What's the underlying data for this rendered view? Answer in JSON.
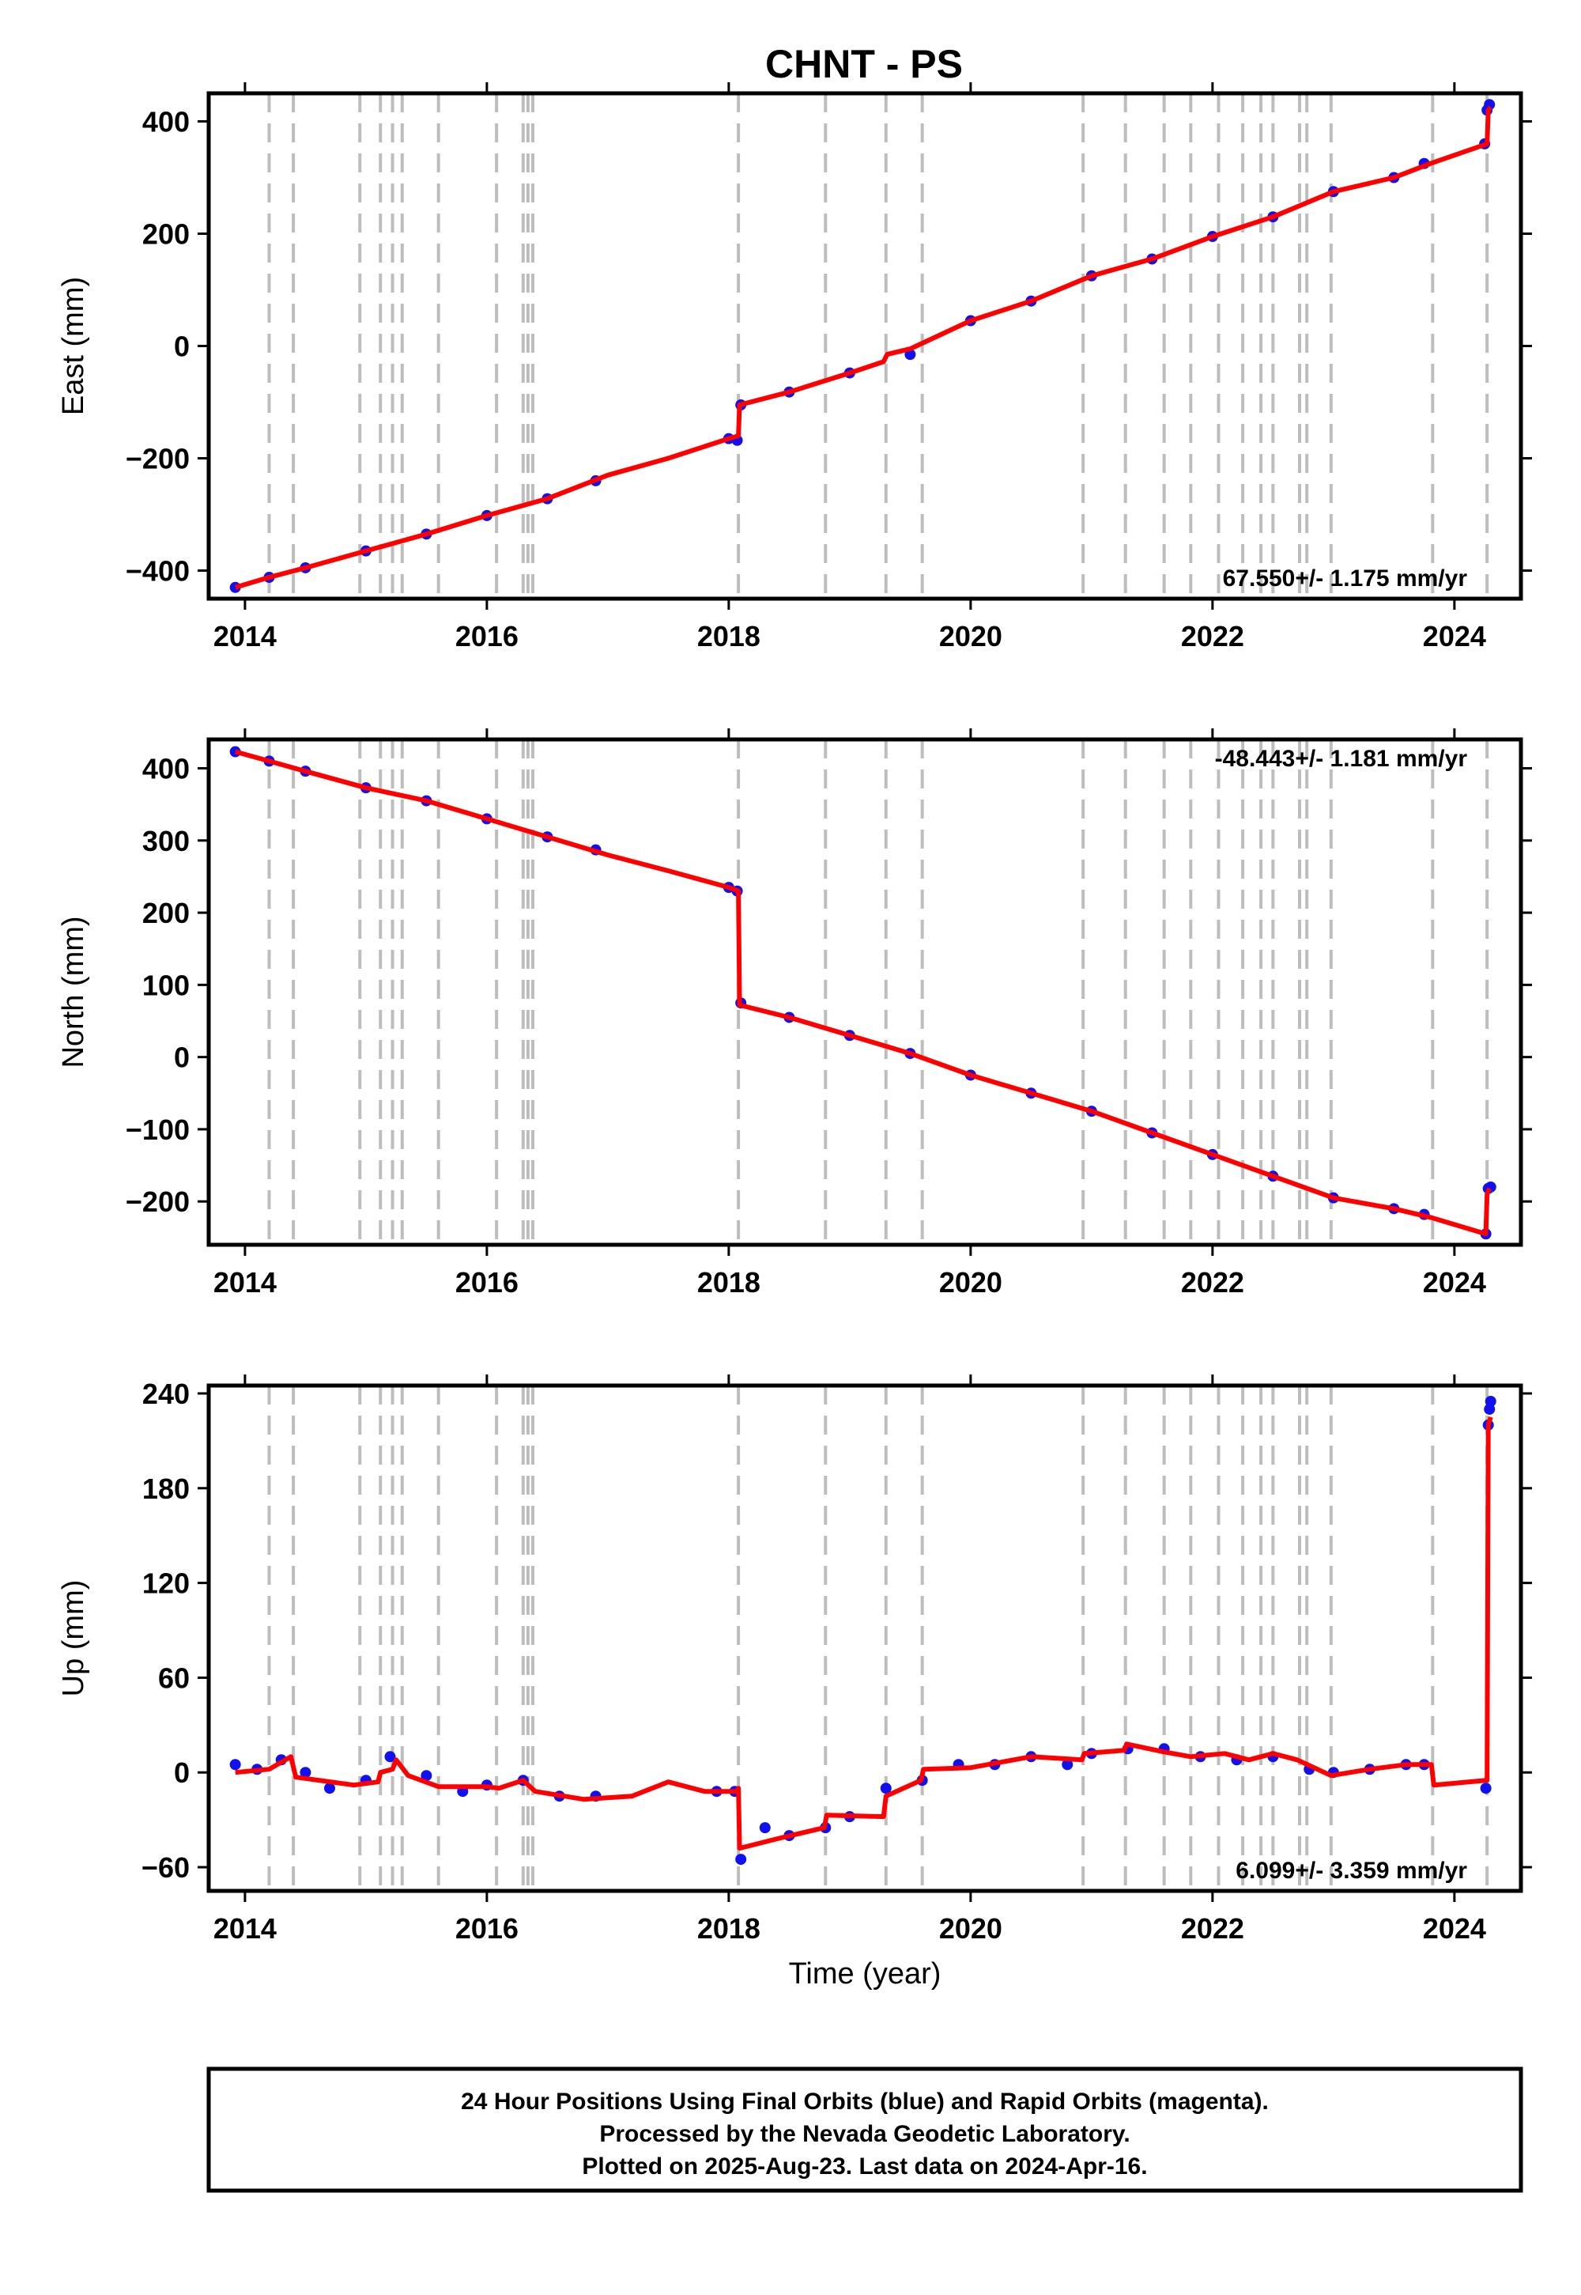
{
  "title": "CHNT - PS",
  "colors": {
    "final_orbits": "#1010f0",
    "model": "#ff0000",
    "events": "#bdbdbd",
    "frame": "#000000"
  },
  "footer": {
    "line1": "24 Hour Positions Using Final Orbits (blue) and Rapid Orbits (magenta).",
    "line2": "Processed by the Nevada Geodetic Laboratory.",
    "line3": "Plotted on 2025-Aug-23. Last data on 2024-Apr-16."
  },
  "chart_data": [
    {
      "type": "scatter",
      "ylabel": "East (mm)",
      "xlabel": "",
      "rate_text": "67.550+/- 1.175 mm/yr",
      "rate_position": "bottom-right",
      "xlim": [
        2013.7,
        2024.55
      ],
      "ylim": [
        -450,
        450
      ],
      "x_ticks": [
        2014,
        2016,
        2018,
        2020,
        2022,
        2024
      ],
      "y_ticks": [
        -400,
        -200,
        0,
        200,
        400
      ],
      "y_tick_labels": [
        "−400",
        "−200",
        "0",
        "200",
        "400"
      ],
      "event_lines": [
        2014.2,
        2014.4,
        2014.95,
        2015.12,
        2015.22,
        2015.3,
        2015.6,
        2016.08,
        2016.3,
        2016.34,
        2016.38,
        2018.08,
        2018.8,
        2019.3,
        2019.6,
        2020.93,
        2021.28,
        2021.6,
        2021.82,
        2022.05,
        2022.25,
        2022.4,
        2022.5,
        2022.72,
        2022.78,
        2022.98,
        2023.82,
        2024.27
      ],
      "series": [
        {
          "name": "Final Orbits",
          "kind": "points",
          "x": [
            2013.92,
            2014.2,
            2014.5,
            2015.0,
            2015.5,
            2016.0,
            2016.5,
            2016.9,
            2018.0,
            2018.07,
            2018.1,
            2018.5,
            2019.0,
            2019.5,
            2020.0,
            2020.5,
            2021.0,
            2021.5,
            2022.0,
            2022.5,
            2023.0,
            2023.5,
            2023.75,
            2024.25,
            2024.27,
            2024.29
          ],
          "y": [
            -430,
            -412,
            -395,
            -365,
            -335,
            -302,
            -272,
            -240,
            -165,
            -168,
            -105,
            -82,
            -48,
            -15,
            45,
            80,
            125,
            155,
            195,
            230,
            275,
            300,
            325,
            360,
            420,
            430
          ]
        },
        {
          "name": "Model",
          "kind": "line",
          "x": [
            2013.92,
            2014.2,
            2014.5,
            2015.0,
            2015.5,
            2016.0,
            2016.5,
            2017.0,
            2017.5,
            2018.0,
            2018.08,
            2018.09,
            2018.5,
            2019.0,
            2019.28,
            2019.31,
            2019.5,
            2020.0,
            2020.5,
            2021.0,
            2021.5,
            2022.0,
            2022.5,
            2023.0,
            2023.5,
            2023.8,
            2024.27,
            2024.28,
            2024.3
          ],
          "y": [
            -430,
            -412,
            -395,
            -365,
            -335,
            -302,
            -272,
            -230,
            -200,
            -165,
            -160,
            -105,
            -82,
            -48,
            -28,
            -15,
            -5,
            45,
            80,
            125,
            155,
            195,
            230,
            275,
            300,
            325,
            360,
            420,
            425
          ]
        }
      ]
    },
    {
      "type": "scatter",
      "ylabel": "North (mm)",
      "xlabel": "",
      "rate_text": "-48.443+/- 1.181 mm/yr",
      "rate_position": "top-right",
      "xlim": [
        2013.7,
        2024.55
      ],
      "ylim": [
        -260,
        440
      ],
      "x_ticks": [
        2014,
        2016,
        2018,
        2020,
        2022,
        2024
      ],
      "y_ticks": [
        -200,
        -100,
        0,
        100,
        200,
        300,
        400
      ],
      "y_tick_labels": [
        "−200",
        "−100",
        "0",
        "100",
        "200",
        "300",
        "400"
      ],
      "event_lines": [
        2014.2,
        2014.4,
        2014.95,
        2015.12,
        2015.22,
        2015.3,
        2015.6,
        2016.08,
        2016.3,
        2016.34,
        2016.38,
        2018.08,
        2018.8,
        2019.3,
        2019.6,
        2020.93,
        2021.28,
        2021.6,
        2021.82,
        2022.05,
        2022.25,
        2022.4,
        2022.5,
        2022.72,
        2022.78,
        2022.98,
        2023.82,
        2024.27
      ],
      "series": [
        {
          "name": "Final Orbits",
          "kind": "points",
          "x": [
            2013.92,
            2014.2,
            2014.5,
            2015.0,
            2015.5,
            2016.0,
            2016.5,
            2016.9,
            2018.0,
            2018.07,
            2018.1,
            2018.5,
            2019.0,
            2019.5,
            2020.0,
            2020.5,
            2021.0,
            2021.5,
            2022.0,
            2022.5,
            2023.0,
            2023.5,
            2023.75,
            2024.26,
            2024.28,
            2024.3
          ],
          "y": [
            423,
            410,
            396,
            373,
            355,
            330,
            305,
            287,
            235,
            230,
            75,
            55,
            30,
            5,
            -25,
            -50,
            -75,
            -105,
            -135,
            -165,
            -195,
            -210,
            -218,
            -245,
            -182,
            -180
          ]
        },
        {
          "name": "Model",
          "kind": "line",
          "x": [
            2013.92,
            2014.2,
            2014.5,
            2015.0,
            2015.5,
            2016.0,
            2016.5,
            2017.0,
            2017.5,
            2018.0,
            2018.08,
            2018.09,
            2018.5,
            2019.0,
            2019.5,
            2020.0,
            2020.5,
            2021.0,
            2021.5,
            2022.0,
            2022.5,
            2023.0,
            2023.5,
            2023.8,
            2024.26,
            2024.27,
            2024.29
          ],
          "y": [
            423,
            410,
            396,
            373,
            355,
            330,
            305,
            280,
            258,
            235,
            230,
            72,
            55,
            30,
            5,
            -25,
            -50,
            -75,
            -105,
            -135,
            -165,
            -195,
            -210,
            -222,
            -245,
            -190,
            -182
          ]
        }
      ]
    },
    {
      "type": "scatter",
      "ylabel": "Up (mm)",
      "xlabel": "Time (year)",
      "rate_text": "6.099+/- 3.359 mm/yr",
      "rate_position": "bottom-right",
      "xlim": [
        2013.7,
        2024.55
      ],
      "ylim": [
        -75,
        245
      ],
      "x_ticks": [
        2014,
        2016,
        2018,
        2020,
        2022,
        2024
      ],
      "y_ticks": [
        -60,
        0,
        60,
        120,
        180,
        240
      ],
      "y_tick_labels": [
        "−60",
        "0",
        "60",
        "120",
        "180",
        "240"
      ],
      "event_lines": [
        2014.2,
        2014.4,
        2014.95,
        2015.12,
        2015.22,
        2015.3,
        2015.6,
        2016.08,
        2016.3,
        2016.34,
        2016.38,
        2018.08,
        2018.8,
        2019.3,
        2019.6,
        2020.93,
        2021.28,
        2021.6,
        2021.82,
        2022.05,
        2022.25,
        2022.4,
        2022.5,
        2022.72,
        2022.78,
        2022.98,
        2023.82,
        2024.27
      ],
      "series": [
        {
          "name": "Final Orbits",
          "kind": "points",
          "x": [
            2013.92,
            2014.1,
            2014.3,
            2014.5,
            2014.7,
            2015.0,
            2015.2,
            2015.5,
            2015.8,
            2016.0,
            2016.3,
            2016.6,
            2016.9,
            2017.9,
            2018.05,
            2018.1,
            2018.3,
            2018.5,
            2018.8,
            2019.0,
            2019.3,
            2019.6,
            2019.9,
            2020.2,
            2020.5,
            2020.8,
            2021.0,
            2021.3,
            2021.6,
            2021.9,
            2022.2,
            2022.5,
            2022.8,
            2023.0,
            2023.3,
            2023.6,
            2023.75,
            2024.26,
            2024.28,
            2024.29,
            2024.3
          ],
          "y": [
            5,
            2,
            8,
            0,
            -10,
            -5,
            10,
            -2,
            -12,
            -8,
            -5,
            -15,
            -15,
            -12,
            -12,
            -55,
            -35,
            -40,
            -35,
            -28,
            -10,
            -5,
            5,
            5,
            10,
            5,
            12,
            15,
            15,
            10,
            8,
            10,
            2,
            0,
            2,
            5,
            5,
            -10,
            220,
            230,
            235
          ]
        },
        {
          "name": "Model",
          "kind": "line",
          "x": [
            2013.92,
            2014.2,
            2014.38,
            2014.42,
            2014.9,
            2015.1,
            2015.12,
            2015.22,
            2015.25,
            2015.35,
            2015.6,
            2016.0,
            2016.1,
            2016.3,
            2016.4,
            2016.8,
            2017.2,
            2017.5,
            2017.8,
            2018.07,
            2018.08,
            2018.09,
            2018.4,
            2018.79,
            2018.81,
            2019.28,
            2019.3,
            2019.59,
            2019.61,
            2020.0,
            2020.5,
            2020.92,
            2020.94,
            2021.27,
            2021.29,
            2021.6,
            2021.82,
            2022.1,
            2022.3,
            2022.5,
            2022.7,
            2022.98,
            2023.3,
            2023.6,
            2023.81,
            2023.83,
            2024.26,
            2024.27,
            2024.28,
            2024.3
          ],
          "y": [
            0,
            2,
            10,
            -3,
            -8,
            -6,
            0,
            2,
            8,
            -2,
            -9,
            -9,
            -10,
            -5,
            -12,
            -17,
            -15,
            -6,
            -12,
            -12,
            -10,
            -48,
            -42,
            -35,
            -27,
            -28,
            -15,
            -5,
            2,
            3,
            10,
            8,
            12,
            14,
            18,
            13,
            10,
            12,
            8,
            12,
            8,
            -2,
            2,
            5,
            5,
            -8,
            -5,
            -5,
            220,
            225
          ]
        }
      ]
    }
  ]
}
